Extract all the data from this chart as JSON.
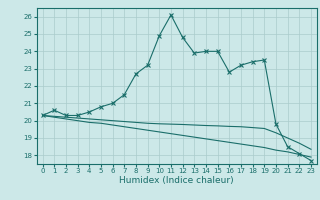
{
  "xlabel": "Humidex (Indice chaleur)",
  "background_color": "#cce8e8",
  "grid_color": "#aacccc",
  "line_color": "#1a6e6a",
  "xlim": [
    -0.5,
    23.5
  ],
  "ylim": [
    17.5,
    26.5
  ],
  "yticks": [
    18,
    19,
    20,
    21,
    22,
    23,
    24,
    25,
    26
  ],
  "xticks": [
    0,
    1,
    2,
    3,
    4,
    5,
    6,
    7,
    8,
    9,
    10,
    11,
    12,
    13,
    14,
    15,
    16,
    17,
    18,
    19,
    20,
    21,
    22,
    23
  ],
  "line1_x": [
    0,
    1,
    2,
    3,
    4,
    5,
    6,
    7,
    8,
    9,
    10,
    11,
    12,
    13,
    14,
    15,
    16,
    17,
    18,
    19,
    20,
    21,
    22,
    23
  ],
  "line1_y": [
    20.3,
    20.6,
    20.3,
    20.3,
    20.5,
    20.8,
    21.0,
    21.5,
    22.7,
    23.2,
    24.9,
    26.1,
    24.8,
    23.9,
    24.0,
    24.0,
    22.8,
    23.2,
    23.4,
    23.5,
    19.8,
    18.5,
    18.1,
    17.7
  ],
  "line2_x": [
    0,
    1,
    2,
    3,
    4,
    5,
    6,
    7,
    8,
    9,
    10,
    11,
    12,
    13,
    14,
    15,
    16,
    17,
    18,
    19,
    20,
    21,
    22,
    23
  ],
  "line2_y": [
    20.3,
    20.2,
    20.1,
    20.0,
    19.9,
    19.85,
    19.75,
    19.65,
    19.55,
    19.45,
    19.35,
    19.25,
    19.15,
    19.05,
    18.95,
    18.85,
    18.75,
    18.65,
    18.55,
    18.45,
    18.3,
    18.2,
    18.05,
    17.9
  ],
  "line3_x": [
    0,
    1,
    2,
    3,
    4,
    5,
    6,
    7,
    8,
    9,
    10,
    11,
    12,
    13,
    14,
    15,
    16,
    17,
    18,
    19,
    20,
    21,
    22,
    23
  ],
  "line3_y": [
    20.3,
    20.25,
    20.2,
    20.15,
    20.1,
    20.05,
    20.0,
    19.95,
    19.9,
    19.85,
    19.82,
    19.8,
    19.78,
    19.75,
    19.72,
    19.7,
    19.67,
    19.65,
    19.6,
    19.55,
    19.3,
    19.0,
    18.7,
    18.35
  ],
  "marker": "x",
  "markersize": 3,
  "linewidth": 0.8,
  "fontsize_ticks": 5.0,
  "fontsize_xlabel": 6.5
}
